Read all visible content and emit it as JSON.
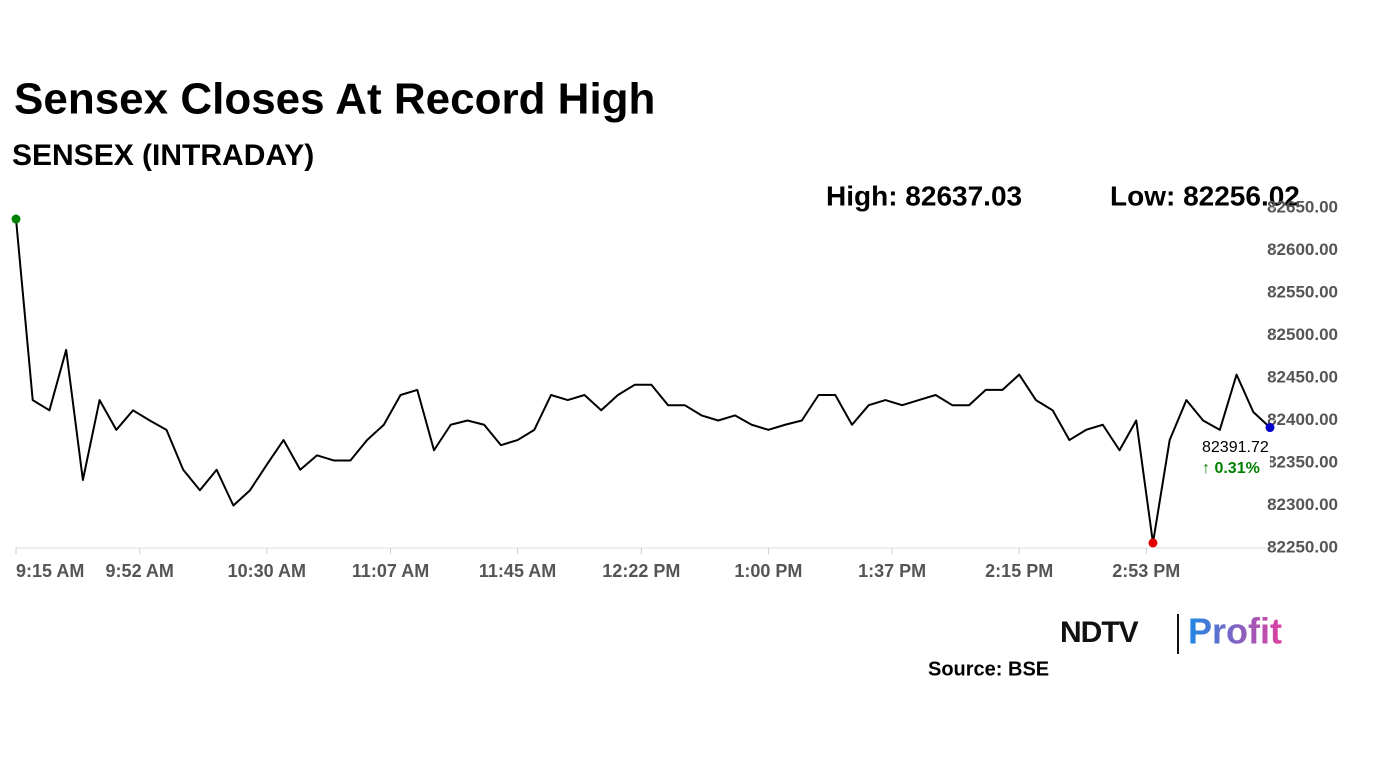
{
  "chart_data": {
    "type": "line",
    "title": "Sensex Closes At Record High",
    "subtitle": "SENSEX (INTRADAY)",
    "high_label": "High: 82637.03",
    "low_label": "Low: 82256.02",
    "end_label": "82391.72",
    "change_label": "↑ 0.31%",
    "x": [
      "9:15 AM",
      "9:20 AM",
      "9:25 AM",
      "9:30 AM",
      "9:35 AM",
      "9:40 AM",
      "9:45 AM",
      "9:50 AM",
      "9:55 AM",
      "10:00 AM",
      "10:05 AM",
      "10:10 AM",
      "10:15 AM",
      "10:20 AM",
      "10:25 AM",
      "10:30 AM",
      "10:35 AM",
      "10:40 AM",
      "10:45 AM",
      "10:50 AM",
      "10:55 AM",
      "11:00 AM",
      "11:05 AM",
      "11:10 AM",
      "11:15 AM",
      "11:20 AM",
      "11:25 AM",
      "11:30 AM",
      "11:35 AM",
      "11:40 AM",
      "11:45 AM",
      "11:50 AM",
      "11:55 AM",
      "12:00 PM",
      "12:05 PM",
      "12:10 PM",
      "12:15 PM",
      "12:20 PM",
      "12:25 PM",
      "12:30 PM",
      "12:35 PM",
      "12:40 PM",
      "12:45 PM",
      "12:50 PM",
      "12:55 PM",
      "1:00 PM",
      "1:05 PM",
      "1:10 PM",
      "1:15 PM",
      "1:20 PM",
      "1:25 PM",
      "1:30 PM",
      "1:35 PM",
      "1:40 PM",
      "1:45 PM",
      "1:50 PM",
      "1:55 PM",
      "2:00 PM",
      "2:05 PM",
      "2:10 PM",
      "2:15 PM",
      "2:20 PM",
      "2:25 PM",
      "2:30 PM",
      "2:35 PM",
      "2:40 PM",
      "2:45 PM",
      "2:50 PM",
      "2:55 PM",
      "3:00 PM",
      "3:05 PM",
      "3:10 PM",
      "3:15 PM",
      "3:20 PM",
      "3:25 PM",
      "3:30 PM"
    ],
    "series": [
      {
        "name": "SENSEX",
        "color": "#000000",
        "values": [
          82637.03,
          82424,
          82412,
          82483,
          82330,
          82424,
          82389,
          82412,
          82400,
          82389,
          82342,
          82318,
          82342,
          82300,
          82318,
          82348,
          82377,
          82342,
          82359,
          82353,
          82353,
          82377,
          82395,
          82430,
          82436,
          82365,
          82395,
          82400,
          82395,
          82371,
          82377,
          82389,
          82430,
          82424,
          82430,
          82412,
          82430,
          82442,
          82442,
          82418,
          82418,
          82406,
          82400,
          82406,
          82395,
          82389,
          82395,
          82400,
          82430,
          82430,
          82395,
          82418,
          82424,
          82418,
          82424,
          82430,
          82418,
          82418,
          82436,
          82436,
          82454,
          82424,
          82412,
          82377,
          82389,
          82395,
          82365,
          82400,
          82256.02,
          82377,
          82424,
          82400,
          82389,
          82454,
          82410,
          82391.72
        ]
      }
    ],
    "high_color": "#008000",
    "low_color": "#e00000",
    "end_color": "#0000cc",
    "change_color": "#008000",
    "xlim": [
      "9:15 AM",
      "3:30 PM"
    ],
    "xticks": [
      "9:15 AM",
      "9:52 AM",
      "10:30 AM",
      "11:07 AM",
      "11:45 AM",
      "12:22 PM",
      "1:00 PM",
      "1:37 PM",
      "2:15 PM",
      "2:53 PM"
    ],
    "ylim": [
      82250,
      82650
    ],
    "yticks": [
      {
        "value": 82250,
        "label": "82250.00"
      },
      {
        "value": 82300,
        "label": "82300.00"
      },
      {
        "value": 82350,
        "label": "82350.00"
      },
      {
        "value": 82400,
        "label": "82400.00"
      },
      {
        "value": 82450,
        "label": "82450.00"
      },
      {
        "value": 82500,
        "label": "82500.00"
      },
      {
        "value": 82550,
        "label": "82550.00"
      },
      {
        "value": 82600,
        "label": "82600.00"
      },
      {
        "value": 82650,
        "label": "82650.00"
      }
    ],
    "grid": false
  },
  "logo": {
    "brand": "NDTV",
    "product": "Profit"
  },
  "source": "Source: BSE"
}
